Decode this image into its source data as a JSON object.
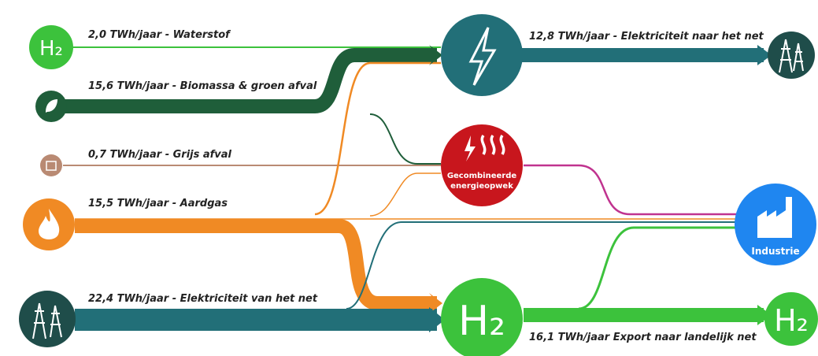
{
  "flows": [
    {
      "label": "2,0 TWh/jaar - Waterstof"
    },
    {
      "label": "15,6 TWh/jaar - Biomassa & groen afval"
    },
    {
      "label": "0,7 TWh/jaar - Grijs afval"
    },
    {
      "label": "15,5 TWh/jaar - Aardgas"
    },
    {
      "label": "22,4 TWh/jaar - Elektriciteit van het net"
    },
    {
      "label": "12,8 TWh/jaar - Elektriciteit naar het net"
    },
    {
      "label": "16,1 TWh/jaar Export naar landelijk net"
    }
  ],
  "nodes": [
    {
      "label": "H₂"
    },
    {
      "label": "Gecombineerde"
    },
    {
      "label": "energieopwek"
    },
    {
      "label": "H₂"
    },
    {
      "label": "Industrie"
    },
    {
      "label": "H₂"
    }
  ]
}
